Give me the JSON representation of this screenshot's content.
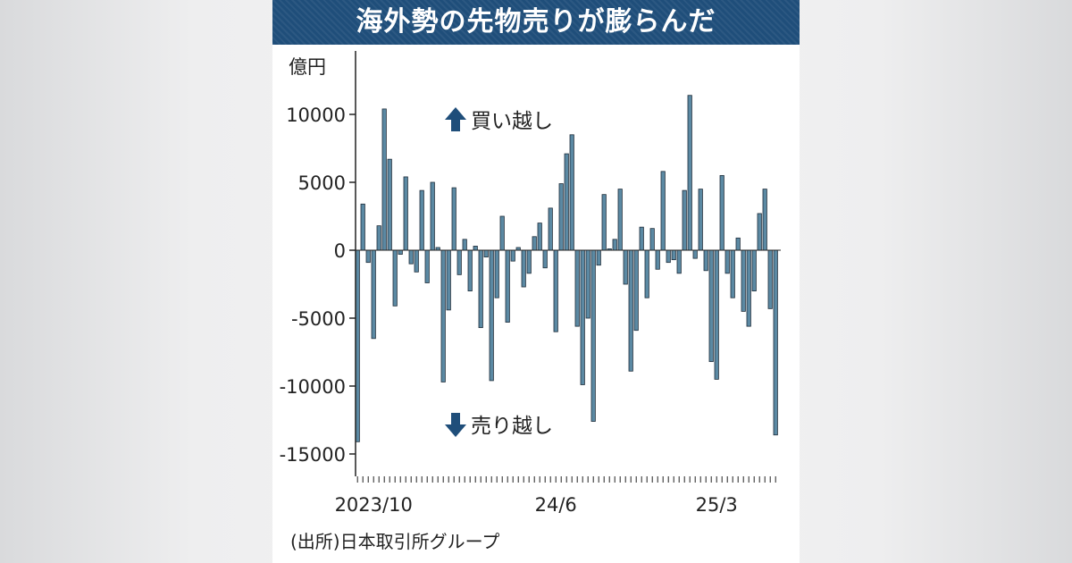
{
  "colors": {
    "title_bg": "#1f4e7a",
    "bar_fill": "#5b89a3",
    "bar_stroke": "#1f2d3a",
    "arrow": "#1f4e7a"
  },
  "chart_data": {
    "type": "bar",
    "title": "海外勢の先物売りが膨らんだ",
    "ylabel": "億円",
    "ylim": [
      -17000,
      14000
    ],
    "yticks": [
      10000,
      5000,
      0,
      -5000,
      -10000,
      -15000
    ],
    "ytick_labels": [
      "10000",
      "5000",
      "0",
      "-5000",
      "-10000",
      "-15000"
    ],
    "x_labels": [
      "2023/10",
      "24/6",
      "25/3"
    ],
    "x_label_index": [
      3,
      37,
      67
    ],
    "annotations": {
      "buy": "買い越し",
      "sell": "売り越し"
    },
    "icons": {
      "buy": "up-arrow-icon",
      "sell": "down-arrow-icon"
    },
    "grid": false,
    "values": [
      -14100,
      3400,
      -900,
      -6500,
      1800,
      10400,
      6700,
      -4100,
      -300,
      5400,
      -1000,
      -1600,
      4400,
      -2400,
      5000,
      200,
      -9700,
      -4400,
      4600,
      -1800,
      800,
      -3000,
      300,
      -5700,
      -500,
      -9600,
      -3500,
      2500,
      -5300,
      -800,
      200,
      -2700,
      -1700,
      1000,
      2000,
      -1300,
      3100,
      -6000,
      4900,
      7100,
      8500,
      -5600,
      -9900,
      -5000,
      -12600,
      -1100,
      4100,
      100,
      800,
      4500,
      -2500,
      -8900,
      -5900,
      1700,
      -3500,
      1600,
      -1400,
      5800,
      -900,
      -700,
      -1700,
      4400,
      11400,
      -600,
      4500,
      -1500,
      -8200,
      -9500,
      5500,
      -1700,
      -3500,
      900,
      -4500,
      -5600,
      -3000,
      2700,
      4500,
      -4300,
      -13600
    ]
  },
  "source": "(出所)日本取引所グループ"
}
